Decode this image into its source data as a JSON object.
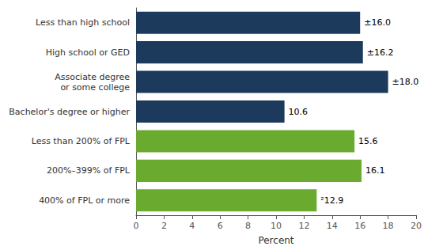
{
  "chart_data": {
    "type": "bar",
    "orientation": "horizontal",
    "categories": [
      "Less than high school",
      "High school or GED",
      "Associate degree\nor some college",
      "Bachelor's degree or higher",
      "Less than 200% of FPL",
      "200%–399% of FPL",
      "400% of FPL or more"
    ],
    "values": [
      16.0,
      16.2,
      18.0,
      10.6,
      15.6,
      16.1,
      12.9
    ],
    "value_labels": [
      "±16.0",
      "±16.2",
      "±18.0",
      "10.6",
      "15.6",
      "16.1",
      "²12.9"
    ],
    "data_labels": true,
    "colors": [
      "#1b3a5c",
      "#1b3a5c",
      "#1b3a5c",
      "#1b3a5c",
      "#6aaa2e",
      "#6aaa2e",
      "#6aaa2e"
    ],
    "xlabel": "Percent",
    "xlim": [
      0,
      20
    ],
    "xticks": [
      0,
      2,
      4,
      6,
      8,
      10,
      12,
      14,
      16,
      18,
      20
    ],
    "grid": false
  }
}
